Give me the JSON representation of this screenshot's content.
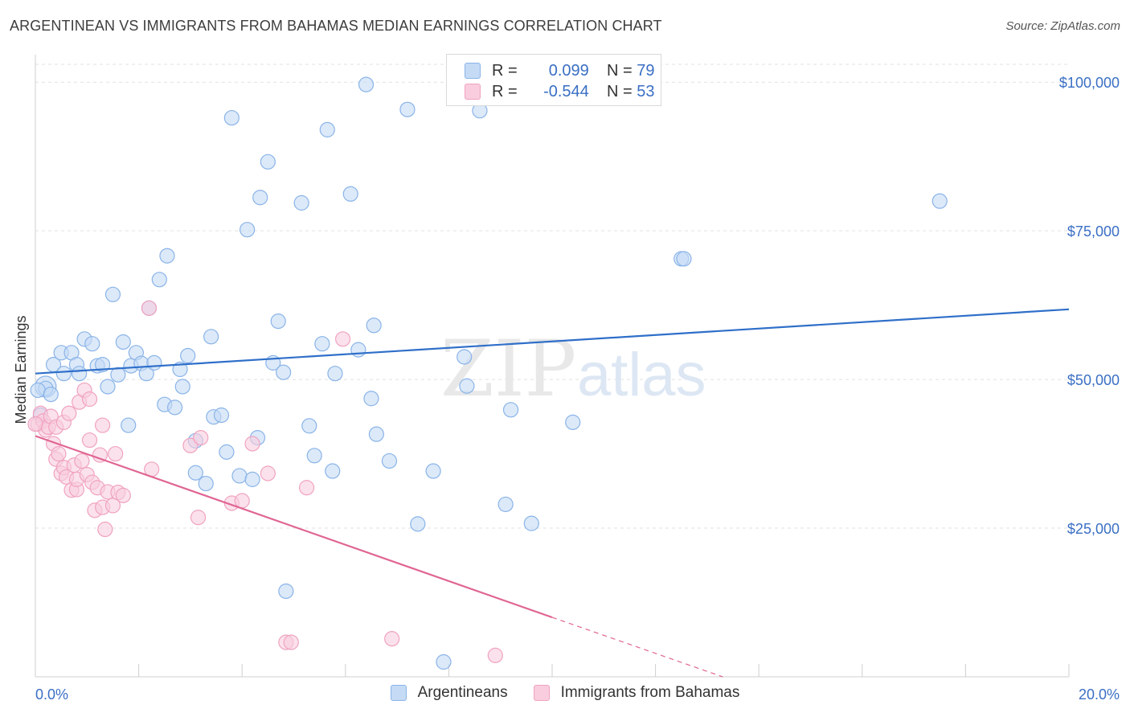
{
  "title": "ARGENTINEAN VS IMMIGRANTS FROM BAHAMAS MEDIAN EARNINGS CORRELATION CHART",
  "source": "Source: ZipAtlas.com",
  "watermark": {
    "zip": "ZIP",
    "atlas": "atlas"
  },
  "legend": {
    "r_label": "R =",
    "n_label": "N =",
    "series": [
      {
        "r_value": "0.099",
        "n_value": "79"
      },
      {
        "r_value": "-0.544",
        "n_value": "53"
      }
    ]
  },
  "chart_data": {
    "type": "scatter",
    "title": "ARGENTINEAN VS IMMIGRANTS FROM BAHAMAS MEDIAN EARNINGS CORRELATION CHART",
    "xlabel": "",
    "ylabel": "Median Earnings",
    "xlim": [
      0,
      20
    ],
    "ylim": [
      0,
      103000
    ],
    "x_tick_labels": [
      "0.0%",
      "20.0%"
    ],
    "y_ticks": [
      25000,
      50000,
      75000,
      100000
    ],
    "y_tick_labels": [
      "$25,000",
      "$50,000",
      "$75,000",
      "$100,000"
    ],
    "grid": true,
    "legend_position": "top-center",
    "series": [
      {
        "name": "Argentineans",
        "color": "#8ab4e8",
        "fill": "#c5daf5",
        "trend_color": "#2f6fc9",
        "trend": {
          "x0": 0,
          "y0": 51000,
          "x1": 20,
          "y1": 61800
        },
        "points": [
          [
            0.2,
            48800
          ],
          [
            0.2,
            48500
          ],
          [
            0.35,
            52500
          ],
          [
            0.5,
            54500
          ],
          [
            0.55,
            51000
          ],
          [
            0.7,
            54500
          ],
          [
            0.8,
            52500
          ],
          [
            0.85,
            51000
          ],
          [
            0.95,
            56800
          ],
          [
            1.1,
            56000
          ],
          [
            1.2,
            52300
          ],
          [
            1.3,
            52500
          ],
          [
            1.4,
            48800
          ],
          [
            1.5,
            64300
          ],
          [
            1.6,
            50800
          ],
          [
            1.7,
            56300
          ],
          [
            1.8,
            42300
          ],
          [
            1.85,
            52300
          ],
          [
            1.95,
            54500
          ],
          [
            2.05,
            52700
          ],
          [
            2.15,
            51000
          ],
          [
            2.2,
            62000
          ],
          [
            2.3,
            52800
          ],
          [
            2.4,
            66800
          ],
          [
            2.5,
            45800
          ],
          [
            2.55,
            70800
          ],
          [
            2.7,
            45300
          ],
          [
            2.8,
            51700
          ],
          [
            2.85,
            48800
          ],
          [
            2.95,
            54000
          ],
          [
            3.1,
            39700
          ],
          [
            3.1,
            34300
          ],
          [
            3.3,
            32500
          ],
          [
            3.4,
            57200
          ],
          [
            3.45,
            43700
          ],
          [
            3.6,
            44000
          ],
          [
            3.7,
            37800
          ],
          [
            3.8,
            94000
          ],
          [
            3.95,
            33800
          ],
          [
            4.1,
            75200
          ],
          [
            4.2,
            33200
          ],
          [
            4.3,
            40200
          ],
          [
            4.35,
            80600
          ],
          [
            4.5,
            86600
          ],
          [
            4.6,
            52800
          ],
          [
            4.7,
            59800
          ],
          [
            4.8,
            51200
          ],
          [
            4.85,
            14400
          ],
          [
            5.15,
            79700
          ],
          [
            5.3,
            42200
          ],
          [
            5.4,
            37200
          ],
          [
            5.55,
            56000
          ],
          [
            5.65,
            92000
          ],
          [
            5.75,
            34600
          ],
          [
            5.8,
            51000
          ],
          [
            6.1,
            81200
          ],
          [
            6.25,
            55000
          ],
          [
            6.4,
            99600
          ],
          [
            6.5,
            46800
          ],
          [
            6.55,
            59100
          ],
          [
            6.6,
            40800
          ],
          [
            6.85,
            36300
          ],
          [
            7.2,
            95400
          ],
          [
            7.4,
            25700
          ],
          [
            7.7,
            34600
          ],
          [
            7.9,
            2500
          ],
          [
            8.3,
            53800
          ],
          [
            8.35,
            48900
          ],
          [
            8.6,
            95200
          ],
          [
            9.1,
            29000
          ],
          [
            9.2,
            44900
          ],
          [
            9.6,
            25800
          ],
          [
            10.4,
            42800
          ],
          [
            12.5,
            70300
          ],
          [
            12.55,
            70300
          ],
          [
            17.5,
            80000
          ],
          [
            0.1,
            44000
          ],
          [
            0.05,
            48200
          ],
          [
            0.3,
            47500
          ]
        ]
      },
      {
        "name": "Immigrants from Bahamas",
        "color": "#f0a3c0",
        "fill": "#f9cddd",
        "trend_color": "#e06593",
        "trend": {
          "x0": 0,
          "y0": 40500,
          "x1": 10,
          "y1": 10000
        },
        "trend_dash": {
          "x0": 10,
          "y0": 10000,
          "x1": 13.3,
          "y1": 0
        },
        "points": [
          [
            0.05,
            42500
          ],
          [
            0.1,
            44300
          ],
          [
            0.15,
            43000
          ],
          [
            0.2,
            41500
          ],
          [
            0.25,
            42000
          ],
          [
            0.3,
            43800
          ],
          [
            0.35,
            39200
          ],
          [
            0.4,
            42000
          ],
          [
            0.4,
            36600
          ],
          [
            0.45,
            37500
          ],
          [
            0.5,
            34200
          ],
          [
            0.55,
            42800
          ],
          [
            0.55,
            35200
          ],
          [
            0.6,
            33600
          ],
          [
            0.65,
            44300
          ],
          [
            0.7,
            31400
          ],
          [
            0.75,
            35600
          ],
          [
            0.8,
            31500
          ],
          [
            0.8,
            33200
          ],
          [
            0.85,
            46200
          ],
          [
            0.9,
            36300
          ],
          [
            0.95,
            48200
          ],
          [
            1.0,
            34000
          ],
          [
            1.05,
            39800
          ],
          [
            1.05,
            46700
          ],
          [
            1.1,
            32700
          ],
          [
            1.15,
            28000
          ],
          [
            1.2,
            31800
          ],
          [
            1.25,
            37300
          ],
          [
            1.3,
            28500
          ],
          [
            1.3,
            42300
          ],
          [
            1.35,
            24800
          ],
          [
            1.4,
            31100
          ],
          [
            1.5,
            28800
          ],
          [
            1.55,
            37500
          ],
          [
            1.6,
            31000
          ],
          [
            1.7,
            30500
          ],
          [
            2.2,
            62000
          ],
          [
            2.25,
            34900
          ],
          [
            3.0,
            38900
          ],
          [
            3.15,
            26800
          ],
          [
            3.2,
            40200
          ],
          [
            3.8,
            29200
          ],
          [
            4.0,
            29600
          ],
          [
            4.2,
            39200
          ],
          [
            4.5,
            34200
          ],
          [
            4.85,
            5800
          ],
          [
            4.95,
            5800
          ],
          [
            5.25,
            31800
          ],
          [
            5.95,
            56800
          ],
          [
            6.9,
            6400
          ],
          [
            8.9,
            3600
          ],
          [
            0.0,
            42500
          ]
        ]
      }
    ]
  }
}
